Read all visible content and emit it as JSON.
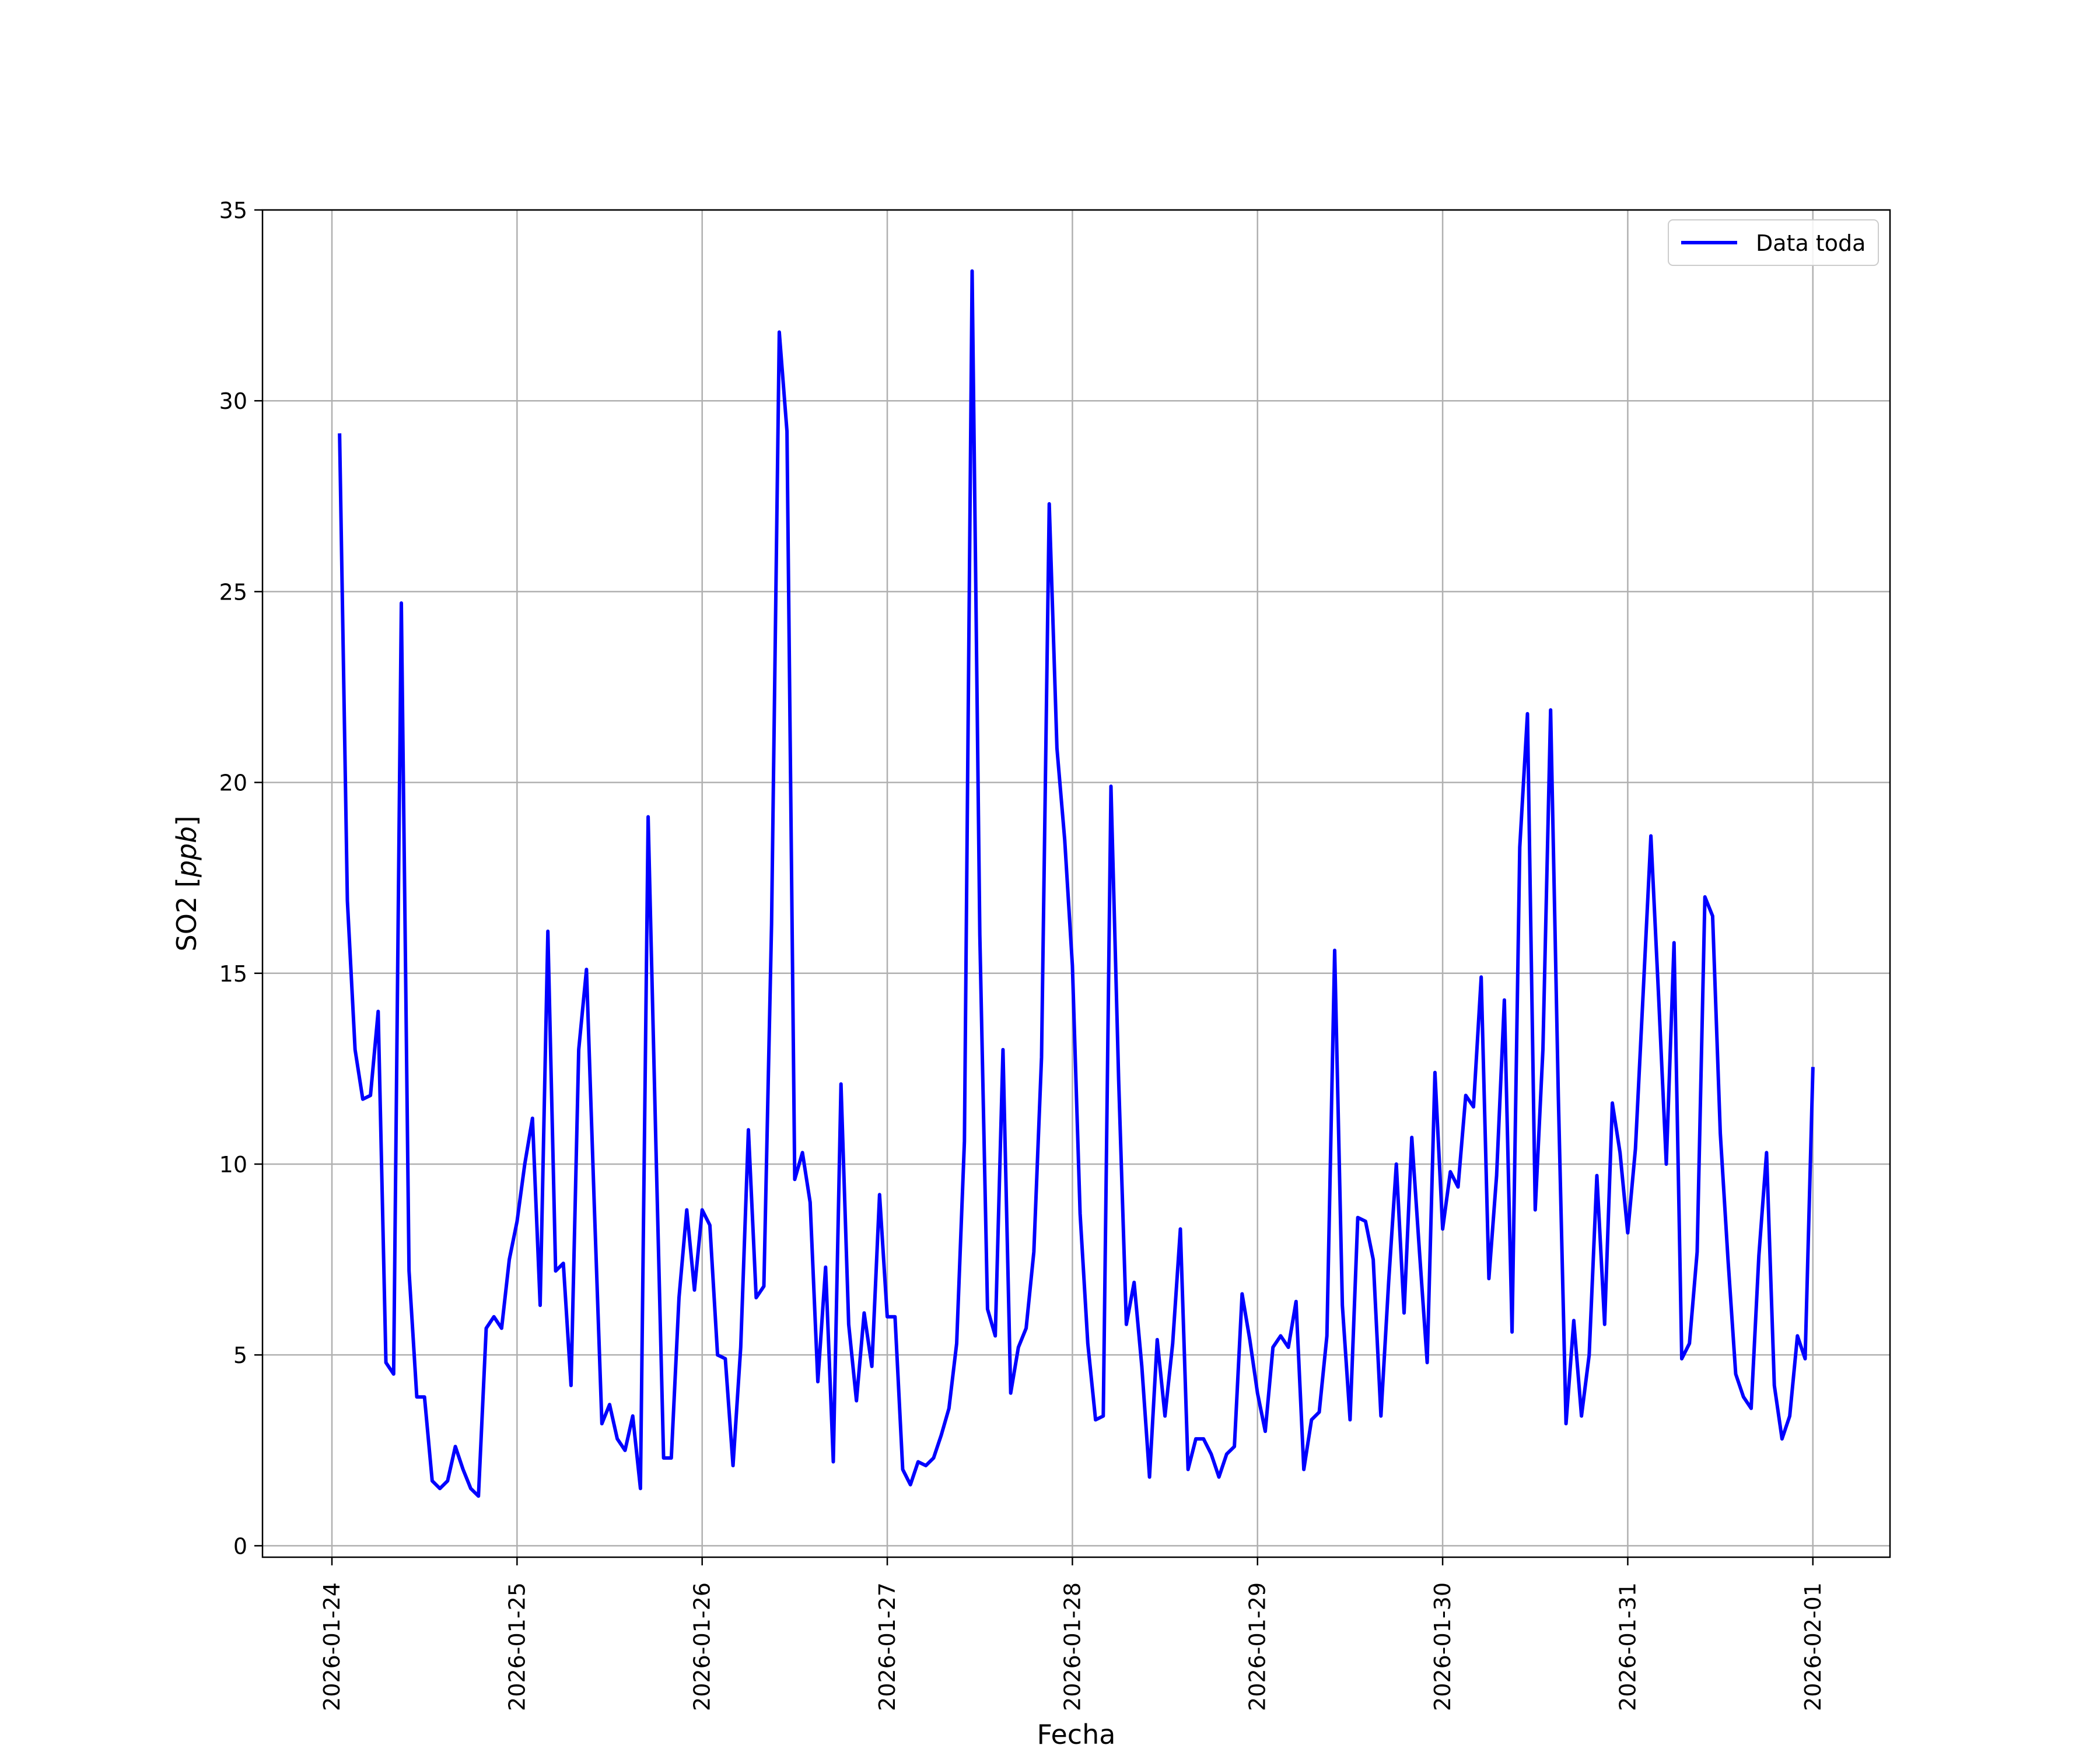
{
  "chart_data": {
    "type": "line",
    "title": "",
    "xlabel": "Fecha",
    "ylabel_prefix": "SO2 [",
    "ylabel_unit": "ppb",
    "ylabel_suffix": "]",
    "xlim": [
      "2026-01-23T15:00",
      "2026-02-01T10:00"
    ],
    "ylim": [
      -0.3,
      35
    ],
    "x_ticks": [
      "2026-01-24",
      "2026-01-25",
      "2026-01-26",
      "2026-01-27",
      "2026-01-28",
      "2026-01-29",
      "2026-01-30",
      "2026-01-31",
      "2026-02-01"
    ],
    "y_ticks": [
      0,
      5,
      10,
      15,
      20,
      25,
      30,
      35
    ],
    "grid": true,
    "legend_position": "top-right",
    "colors": {
      "series": "#0000ff",
      "grid": "#b0b0b0",
      "frame": "#000000"
    },
    "series": [
      {
        "name": "Data toda",
        "x_start": "2026-01-24T01:00",
        "x_step_hours": 1,
        "values": [
          29.1,
          16.9,
          13.0,
          11.7,
          11.8,
          14.0,
          4.8,
          4.5,
          24.7,
          7.2,
          3.9,
          3.9,
          1.7,
          1.5,
          1.7,
          2.6,
          2.0,
          1.5,
          1.3,
          5.7,
          6.0,
          5.7,
          7.5,
          8.5,
          10.0,
          11.2,
          6.3,
          16.1,
          7.2,
          7.4,
          4.2,
          13.0,
          15.1,
          9.0,
          3.2,
          3.7,
          2.8,
          2.5,
          3.4,
          1.5,
          19.1,
          10.5,
          2.3,
          2.3,
          6.5,
          8.8,
          6.7,
          8.8,
          8.4,
          5.0,
          4.9,
          2.1,
          5.2,
          10.9,
          6.5,
          6.8,
          16.3,
          31.8,
          29.2,
          9.6,
          10.3,
          9.0,
          4.3,
          7.3,
          2.2,
          12.1,
          5.8,
          3.8,
          6.1,
          4.7,
          9.2,
          6.0,
          6.0,
          2.0,
          1.6,
          2.2,
          2.1,
          2.3,
          2.9,
          3.6,
          5.3,
          10.6,
          33.4,
          16.0,
          6.2,
          5.5,
          13.0,
          4.0,
          5.2,
          5.7,
          7.7,
          12.8,
          27.3,
          20.9,
          18.5,
          15.2,
          8.7,
          5.3,
          3.3,
          3.4,
          19.9,
          12.2,
          5.8,
          6.9,
          4.7,
          1.8,
          5.4,
          3.4,
          5.3,
          8.3,
          2.0,
          2.8,
          2.8,
          2.4,
          1.8,
          2.4,
          2.6,
          6.6,
          5.4,
          4.0,
          3.0,
          5.2,
          5.5,
          5.2,
          6.4,
          2.0,
          3.3,
          3.5,
          5.5,
          15.6,
          6.3,
          3.3,
          8.6,
          8.5,
          7.5,
          3.4,
          6.9,
          10.0,
          6.1,
          10.7,
          7.7,
          4.8,
          12.4,
          8.3,
          9.8,
          9.4,
          11.8,
          11.5,
          14.9,
          7.0,
          9.7,
          14.3,
          5.6,
          18.3,
          21.8,
          8.8,
          13.0,
          21.9,
          11.8,
          3.2,
          5.9,
          3.4,
          5.0,
          9.7,
          5.8,
          11.6,
          10.3,
          8.2,
          10.4,
          14.5,
          18.6,
          14.4,
          10.0,
          15.8,
          4.9,
          5.3,
          7.7,
          17.0,
          16.5,
          10.8,
          7.5,
          4.5,
          3.9,
          3.6,
          7.6,
          10.3,
          4.2,
          2.8,
          3.4,
          5.5,
          4.9,
          12.5
        ]
      }
    ]
  }
}
